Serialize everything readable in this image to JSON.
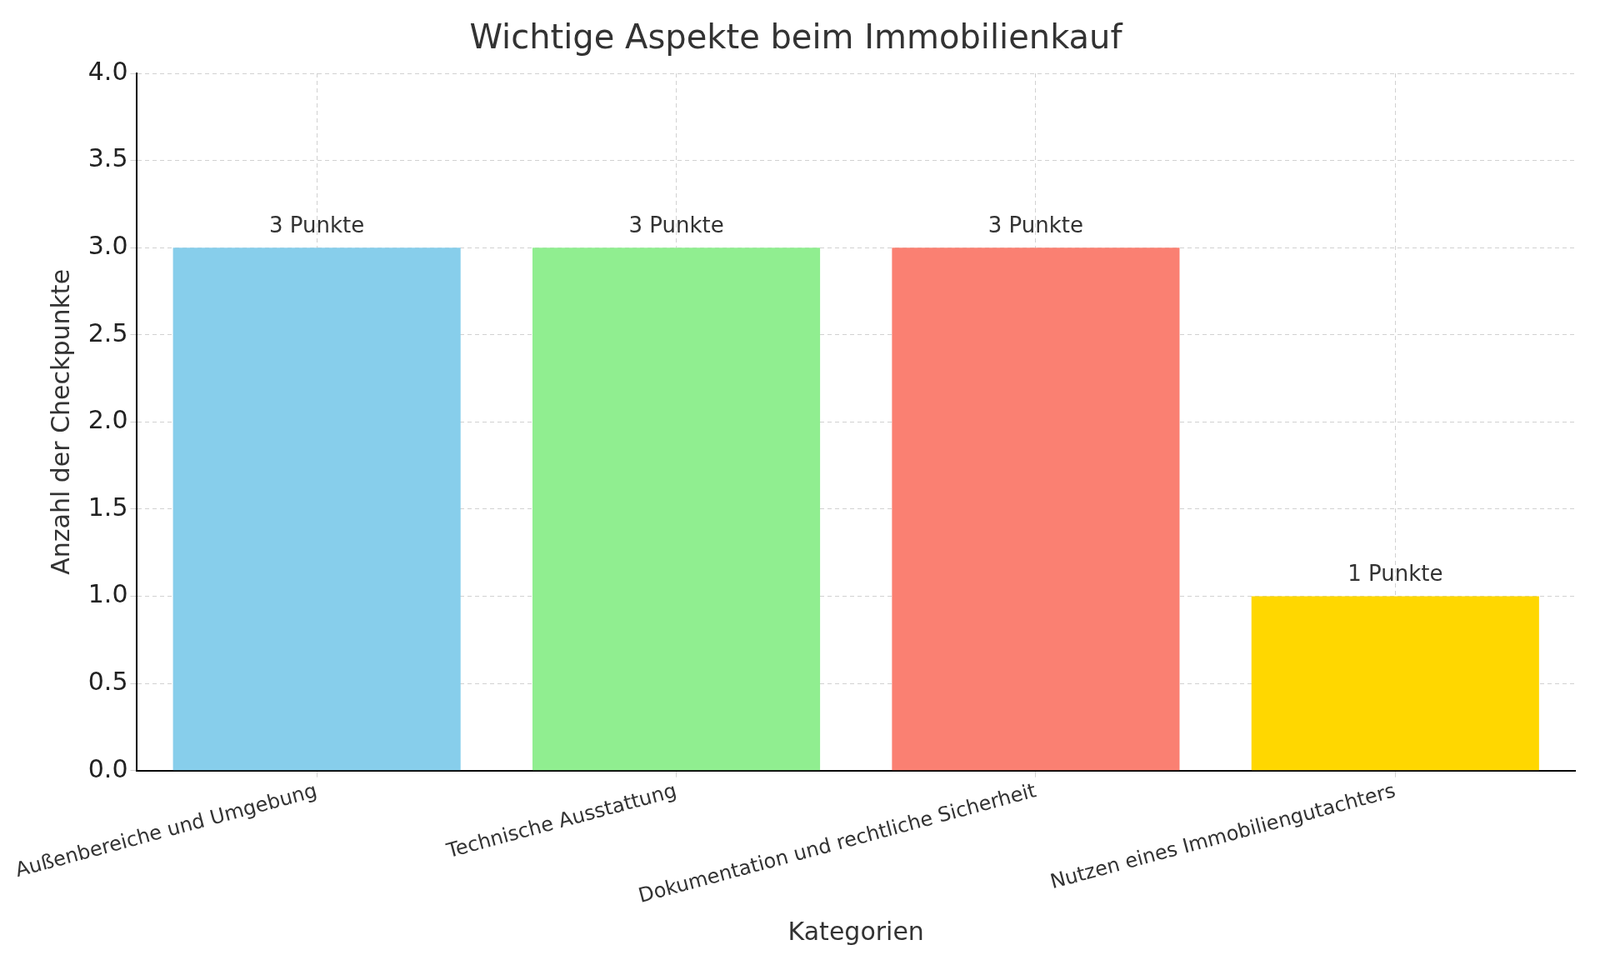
{
  "chart_data": {
    "type": "bar",
    "title": "Wichtige Aspekte beim Immobilienkauf",
    "x_label": "Kategorien",
    "y_label": "Anzahl der Checkpunkte",
    "categories": [
      "Außenbereiche und Umgebung",
      "Technische Ausstattung",
      "Dokumentation und rechtliche Sicherheit",
      "Nutzen eines Immobiliengutachters"
    ],
    "values": [
      3,
      3,
      3,
      1
    ],
    "value_labels": [
      "3 Punkte",
      "3 Punkte",
      "3 Punkte",
      "1 Punkte"
    ],
    "data_labels": true,
    "colors": [
      "#87ceeb",
      "#90ee90",
      "#fa8072",
      "#ffd700"
    ],
    "ylim": [
      0,
      4
    ],
    "yticks": [
      {
        "value": 0,
        "label": "0.0"
      },
      0.5,
      {
        "value": 1,
        "label": "1.0"
      },
      1.5,
      {
        "value": 2,
        "label": "2.0"
      },
      2.5,
      {
        "value": 3,
        "label": "3.0"
      },
      3.5,
      {
        "value": 4,
        "label": "4.0"
      }
    ],
    "grid": true
  }
}
